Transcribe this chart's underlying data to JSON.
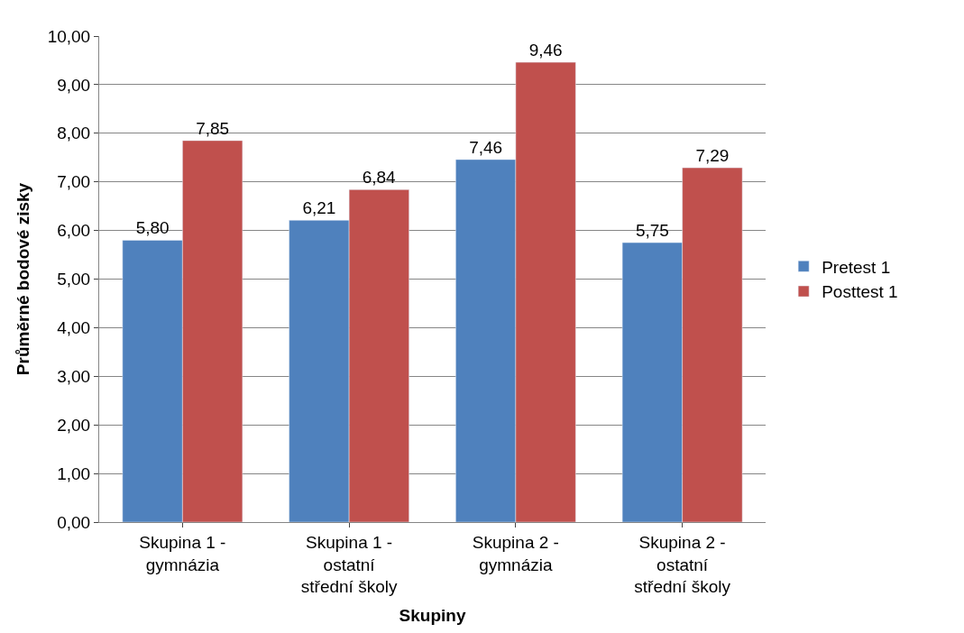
{
  "chart_data": {
    "type": "bar",
    "xlabel": "Skupiny",
    "ylabel": "Průměrné bodové zisky",
    "categories": [
      "Skupina 1 - gymnázia",
      "Skupina 1 - ostatní střední školy",
      "Skupina 2 - gymnázia",
      "Skupina 2 - ostatní střední školy"
    ],
    "series": [
      {
        "name": "Pretest 1",
        "color": "#4f81bd",
        "values": [
          5.8,
          6.21,
          7.46,
          5.75
        ],
        "value_labels": [
          "5,80",
          "6,21",
          "7,46",
          "5,75"
        ]
      },
      {
        "name": "Posttest 1",
        "color": "#c0504d",
        "values": [
          7.85,
          6.84,
          9.46,
          7.29
        ],
        "value_labels": [
          "7,85",
          "6,84",
          "9,46",
          "7,29"
        ]
      }
    ],
    "ylim": [
      0,
      10
    ],
    "yticks": [
      {
        "value": 0,
        "label": "0,00"
      },
      {
        "value": 1,
        "label": "1,00"
      },
      {
        "value": 2,
        "label": "2,00"
      },
      {
        "value": 3,
        "label": "3,00"
      },
      {
        "value": 4,
        "label": "4,00"
      },
      {
        "value": 5,
        "label": "5,00"
      },
      {
        "value": 6,
        "label": "6,00"
      },
      {
        "value": 7,
        "label": "7,00"
      },
      {
        "value": 8,
        "label": "8,00"
      },
      {
        "value": 9,
        "label": "9,00"
      },
      {
        "value": 10,
        "label": "10,00"
      }
    ],
    "grid": "y",
    "legend": "right"
  }
}
